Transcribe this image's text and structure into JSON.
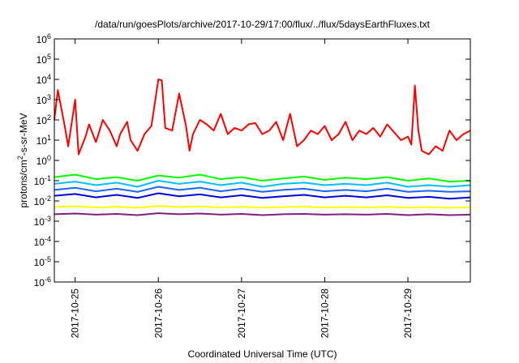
{
  "chart_data": {
    "type": "line",
    "title": "/data/run/goesPlots/archive/2017-10-29/17:00/flux/../flux/5daysEarthFluxes.txt",
    "xlabel": "Coordinated Universal Time (UTC)",
    "ylabel": {
      "prefix": "protons/cm",
      "sup": "2",
      "suffix": "-s-sr-MeV"
    },
    "xlim": [
      "2017-10-24T18:00",
      "2017-10-29T18:00"
    ],
    "ylim": [
      1e-06,
      1000000.0
    ],
    "yscale": "log",
    "grid": false,
    "x_ticks": [
      "2017-10-25",
      "2017-10-26",
      "2017-10-27",
      "2017-10-28",
      "2017-10-29"
    ],
    "y_ticks": [
      {
        "base": "10",
        "exp": "-6",
        "value": 1e-06
      },
      {
        "base": "10",
        "exp": "-5",
        "value": 1e-05
      },
      {
        "base": "10",
        "exp": "-4",
        "value": 0.0001
      },
      {
        "base": "10",
        "exp": "-3",
        "value": 0.001
      },
      {
        "base": "10",
        "exp": "-2",
        "value": 0.01
      },
      {
        "base": "10",
        "exp": "-1",
        "value": 0.1
      },
      {
        "base": "10",
        "exp": "0",
        "value": 1
      },
      {
        "base": "10",
        "exp": "1",
        "value": 10
      },
      {
        "base": "10",
        "exp": "2",
        "value": 100
      },
      {
        "base": "10",
        "exp": "3",
        "value": 1000
      },
      {
        "base": "10",
        "exp": "4",
        "value": 10000
      },
      {
        "base": "10",
        "exp": "5",
        "value": 100000
      },
      {
        "base": "10",
        "exp": "6",
        "value": 1000000
      }
    ],
    "series": [
      {
        "color": "#ff0000",
        "x": [
          "2017-10-24T18:00",
          "2017-10-24T19:00",
          "2017-10-24T21:00",
          "2017-10-24T22:00",
          "2017-10-25T00:00",
          "2017-10-25T01:00",
          "2017-10-25T03:00",
          "2017-10-25T04:00",
          "2017-10-25T06:00",
          "2017-10-25T08:00",
          "2017-10-25T10:00",
          "2017-10-25T12:00",
          "2017-10-25T13:00",
          "2017-10-25T15:00",
          "2017-10-25T16:00",
          "2017-10-25T18:00",
          "2017-10-25T20:00",
          "2017-10-25T22:00",
          "2017-10-26T00:00",
          "2017-10-26T01:00",
          "2017-10-26T02:00",
          "2017-10-26T04:00",
          "2017-10-26T06:00",
          "2017-10-26T08:00",
          "2017-10-26T09:00",
          "2017-10-26T10:00",
          "2017-10-26T12:00",
          "2017-10-26T14:00",
          "2017-10-26T16:00",
          "2017-10-26T18:00",
          "2017-10-26T20:00",
          "2017-10-26T22:00",
          "2017-10-27T00:00",
          "2017-10-27T02:00",
          "2017-10-27T04:00",
          "2017-10-27T06:00",
          "2017-10-27T08:00",
          "2017-10-27T10:00",
          "2017-10-27T12:00",
          "2017-10-27T14:00",
          "2017-10-27T16:00",
          "2017-10-27T18:00",
          "2017-10-27T20:00",
          "2017-10-27T22:00",
          "2017-10-28T00:00",
          "2017-10-28T02:00",
          "2017-10-28T04:00",
          "2017-10-28T06:00",
          "2017-10-28T08:00",
          "2017-10-28T10:00",
          "2017-10-28T12:00",
          "2017-10-28T14:00",
          "2017-10-28T16:00",
          "2017-10-28T18:00",
          "2017-10-28T20:00",
          "2017-10-28T22:00",
          "2017-10-29T00:00",
          "2017-10-29T01:00",
          "2017-10-29T02:00",
          "2017-10-29T03:00",
          "2017-10-29T04:00",
          "2017-10-29T06:00",
          "2017-10-29T08:00",
          "2017-10-29T10:00",
          "2017-10-29T12:00",
          "2017-10-29T14:00",
          "2017-10-29T16:00",
          "2017-10-29T18:00"
        ],
        "y": [
          100,
          3000,
          50,
          5,
          1000,
          2,
          15,
          60,
          8,
          100,
          30,
          5,
          20,
          80,
          10,
          3,
          20,
          50,
          10000,
          9000,
          40,
          30,
          2000,
          50,
          3,
          20,
          100,
          60,
          30,
          200,
          20,
          40,
          30,
          60,
          70,
          20,
          30,
          80,
          10,
          200,
          5,
          10,
          30,
          20,
          50,
          10,
          20,
          80,
          10,
          30,
          20,
          40,
          15,
          60,
          25,
          10,
          15,
          6,
          5000,
          30,
          3,
          2,
          5,
          3,
          30,
          10,
          20,
          30
        ]
      },
      {
        "color": "#00ff00",
        "x": [
          "2017-10-24T18:00",
          "2017-10-25T00:00",
          "2017-10-25T06:00",
          "2017-10-25T12:00",
          "2017-10-25T18:00",
          "2017-10-26T00:00",
          "2017-10-26T06:00",
          "2017-10-26T12:00",
          "2017-10-26T18:00",
          "2017-10-27T00:00",
          "2017-10-27T06:00",
          "2017-10-27T12:00",
          "2017-10-27T18:00",
          "2017-10-28T00:00",
          "2017-10-28T06:00",
          "2017-10-28T12:00",
          "2017-10-28T18:00",
          "2017-10-29T00:00",
          "2017-10-29T06:00",
          "2017-10-29T12:00",
          "2017-10-29T18:00"
        ],
        "y": [
          0.15,
          0.2,
          0.12,
          0.15,
          0.1,
          0.18,
          0.14,
          0.2,
          0.12,
          0.15,
          0.1,
          0.13,
          0.16,
          0.11,
          0.14,
          0.12,
          0.15,
          0.1,
          0.13,
          0.09,
          0.1
        ]
      },
      {
        "color": "#00bfff",
        "x": [
          "2017-10-24T18:00",
          "2017-10-25T00:00",
          "2017-10-25T06:00",
          "2017-10-25T12:00",
          "2017-10-25T18:00",
          "2017-10-26T00:00",
          "2017-10-26T06:00",
          "2017-10-26T12:00",
          "2017-10-26T18:00",
          "2017-10-27T00:00",
          "2017-10-27T06:00",
          "2017-10-27T12:00",
          "2017-10-27T18:00",
          "2017-10-28T00:00",
          "2017-10-28T06:00",
          "2017-10-28T12:00",
          "2017-10-28T18:00",
          "2017-10-29T00:00",
          "2017-10-29T06:00",
          "2017-10-29T12:00",
          "2017-10-29T18:00"
        ],
        "y": [
          0.07,
          0.09,
          0.06,
          0.08,
          0.05,
          0.1,
          0.07,
          0.09,
          0.06,
          0.08,
          0.05,
          0.07,
          0.08,
          0.06,
          0.07,
          0.06,
          0.08,
          0.05,
          0.06,
          0.05,
          0.06
        ]
      },
      {
        "color": "#1e64ff",
        "x": [
          "2017-10-24T18:00",
          "2017-10-25T00:00",
          "2017-10-25T06:00",
          "2017-10-25T12:00",
          "2017-10-25T18:00",
          "2017-10-26T00:00",
          "2017-10-26T06:00",
          "2017-10-26T12:00",
          "2017-10-26T18:00",
          "2017-10-27T00:00",
          "2017-10-27T06:00",
          "2017-10-27T12:00",
          "2017-10-27T18:00",
          "2017-10-28T00:00",
          "2017-10-28T06:00",
          "2017-10-28T12:00",
          "2017-10-28T18:00",
          "2017-10-29T00:00",
          "2017-10-29T06:00",
          "2017-10-29T12:00",
          "2017-10-29T18:00"
        ],
        "y": [
          0.035,
          0.045,
          0.03,
          0.04,
          0.028,
          0.05,
          0.035,
          0.045,
          0.03,
          0.04,
          0.028,
          0.035,
          0.04,
          0.03,
          0.035,
          0.03,
          0.04,
          0.028,
          0.032,
          0.028,
          0.03
        ]
      },
      {
        "color": "#0000dd",
        "x": [
          "2017-10-24T18:00",
          "2017-10-25T00:00",
          "2017-10-25T06:00",
          "2017-10-25T12:00",
          "2017-10-25T18:00",
          "2017-10-26T00:00",
          "2017-10-26T06:00",
          "2017-10-26T12:00",
          "2017-10-26T18:00",
          "2017-10-27T00:00",
          "2017-10-27T06:00",
          "2017-10-27T12:00",
          "2017-10-27T18:00",
          "2017-10-28T00:00",
          "2017-10-28T06:00",
          "2017-10-28T12:00",
          "2017-10-28T18:00",
          "2017-10-29T00:00",
          "2017-10-29T06:00",
          "2017-10-29T12:00",
          "2017-10-29T18:00"
        ],
        "y": [
          0.018,
          0.022,
          0.015,
          0.02,
          0.014,
          0.024,
          0.017,
          0.021,
          0.015,
          0.019,
          0.014,
          0.017,
          0.02,
          0.015,
          0.018,
          0.015,
          0.019,
          0.014,
          0.016,
          0.013,
          0.015
        ]
      },
      {
        "color": "#ffff00",
        "x": [
          "2017-10-24T18:00",
          "2017-10-25T00:00",
          "2017-10-25T06:00",
          "2017-10-25T12:00",
          "2017-10-25T18:00",
          "2017-10-26T00:00",
          "2017-10-26T06:00",
          "2017-10-26T12:00",
          "2017-10-26T18:00",
          "2017-10-27T00:00",
          "2017-10-27T06:00",
          "2017-10-27T12:00",
          "2017-10-27T18:00",
          "2017-10-28T00:00",
          "2017-10-28T06:00",
          "2017-10-28T12:00",
          "2017-10-28T18:00",
          "2017-10-29T00:00",
          "2017-10-29T06:00",
          "2017-10-29T12:00",
          "2017-10-29T18:00"
        ],
        "y": [
          0.005,
          0.0055,
          0.0048,
          0.0052,
          0.0046,
          0.0056,
          0.005,
          0.0053,
          0.0048,
          0.0051,
          0.0047,
          0.005,
          0.0052,
          0.0048,
          0.005,
          0.0048,
          0.0051,
          0.0047,
          0.0049,
          0.0046,
          0.0048
        ]
      },
      {
        "color": "#7f1f7f",
        "x": [
          "2017-10-24T18:00",
          "2017-10-25T00:00",
          "2017-10-25T06:00",
          "2017-10-25T12:00",
          "2017-10-25T18:00",
          "2017-10-26T00:00",
          "2017-10-26T06:00",
          "2017-10-26T12:00",
          "2017-10-26T18:00",
          "2017-10-27T00:00",
          "2017-10-27T06:00",
          "2017-10-27T12:00",
          "2017-10-27T18:00",
          "2017-10-28T00:00",
          "2017-10-28T06:00",
          "2017-10-28T12:00",
          "2017-10-28T18:00",
          "2017-10-29T00:00",
          "2017-10-29T06:00",
          "2017-10-29T12:00",
          "2017-10-29T18:00"
        ],
        "y": [
          0.0022,
          0.0024,
          0.0021,
          0.0023,
          0.002,
          0.0025,
          0.0022,
          0.0024,
          0.0021,
          0.0023,
          0.002,
          0.0022,
          0.0023,
          0.0021,
          0.0022,
          0.0021,
          0.0023,
          0.002,
          0.0022,
          0.002,
          0.0021
        ]
      }
    ]
  }
}
